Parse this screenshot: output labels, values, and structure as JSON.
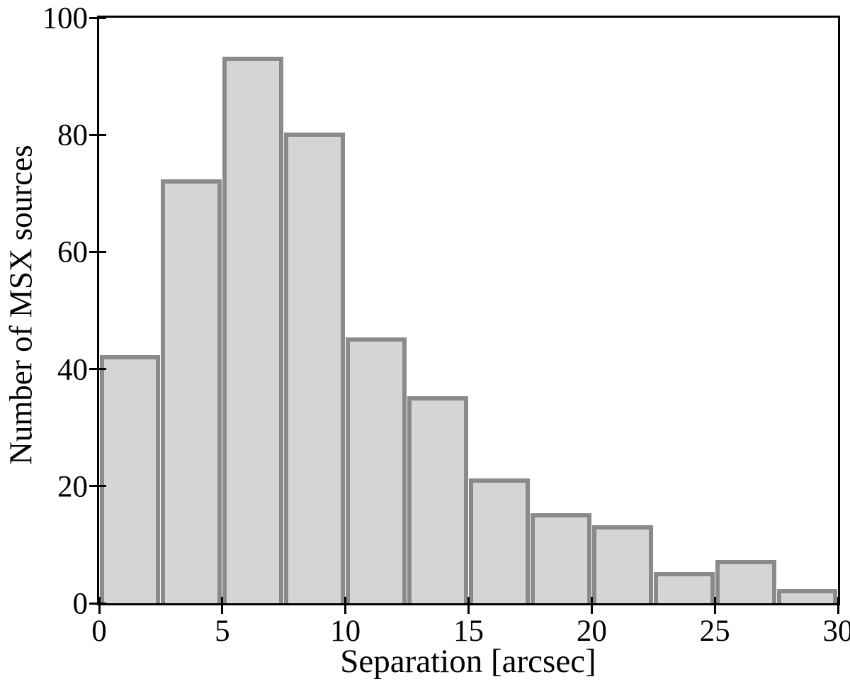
{
  "chart_data": {
    "type": "bar",
    "subtype": "histogram",
    "title": "",
    "xlabel": "Separation [arcsec]",
    "ylabel": "Number of MSX sources",
    "bin_width": 2.5,
    "bin_edges": [
      0,
      2.5,
      5,
      7.5,
      10,
      12.5,
      15,
      17.5,
      20,
      22.5,
      25,
      27.5,
      30
    ],
    "values": [
      42,
      72,
      93,
      80,
      45,
      35,
      21,
      15,
      13,
      5,
      7,
      2
    ],
    "x_ticks": [
      0,
      5,
      10,
      15,
      20,
      25,
      30
    ],
    "y_ticks": [
      0,
      20,
      40,
      60,
      80,
      100
    ],
    "xlim": [
      0,
      30
    ],
    "ylim": [
      0,
      100
    ],
    "grid": false,
    "legend": "none",
    "frame": "full-box",
    "colors": {
      "bar_fill": "#d5d5d5",
      "bar_edge": "#8a8a8a",
      "axis": "#000000",
      "background": "#ffffff"
    }
  }
}
